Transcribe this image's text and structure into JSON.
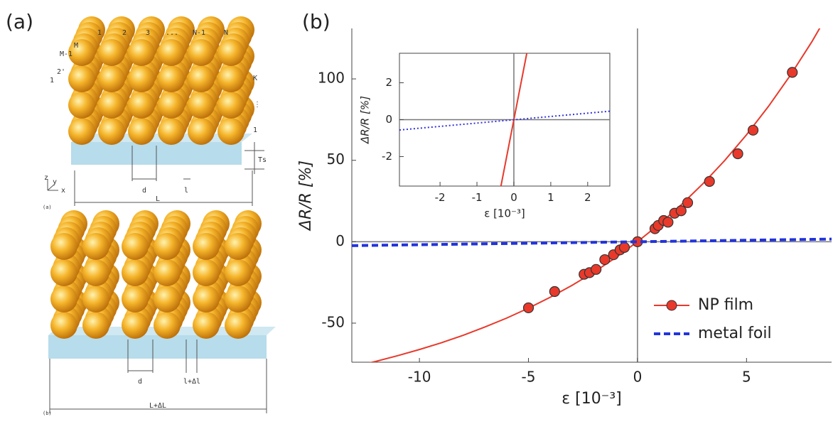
{
  "panel_labels": [
    "(a)",
    "(b)"
  ],
  "illustration": {
    "unstrained": {
      "column_labels": [
        "1",
        "2",
        "3",
        "...",
        "N-1",
        "N"
      ],
      "row_labels": [
        "1",
        "2'",
        "M-1",
        "M"
      ],
      "layer_labels": [
        "K",
        "⋮",
        "1"
      ],
      "thickness_label": "Ts",
      "gap_label": "d",
      "spacing_label": "l",
      "length_label": "L",
      "axes_labels": [
        "z",
        "y",
        "x"
      ],
      "caption": "(a)"
    },
    "strained": {
      "gap_label": "d",
      "spacing_label": "l+Δl",
      "length_label": "L+ΔL",
      "caption": "(b)"
    }
  },
  "chart_data": [
    {
      "type": "line",
      "xlabel": "ε [10⁻³]",
      "ylabel": "ΔR/R [%]",
      "xlim": [
        -13.1,
        8.9
      ],
      "ylim": [
        -74,
        131
      ],
      "xticks": [
        -10,
        -5,
        0,
        5
      ],
      "yticks": [
        -50,
        0,
        50,
        100
      ],
      "zero_lines": true,
      "legend": "lower right",
      "series": [
        {
          "name": "NP film",
          "color": "#e8392b",
          "marker": "circle",
          "x": [
            -5.0,
            -3.8,
            -2.45,
            -2.2,
            -1.9,
            -1.5,
            -1.1,
            -0.8,
            -0.6,
            0,
            0.8,
            0.95,
            1.2,
            1.4,
            1.7,
            2.0,
            2.3,
            3.3,
            4.6,
            5.3,
            7.1
          ],
          "values": [
            -40.6,
            -30.6,
            -20,
            -19,
            -17,
            -11,
            -8,
            -5,
            -3.5,
            0,
            8,
            10,
            13,
            12,
            17.5,
            19,
            24,
            37,
            54,
            68.5,
            104
          ],
          "curve": {
            "x": [
              -13,
              -12,
              -11,
              -10,
              -9,
              -8,
              -7,
              -6,
              -5,
              -4,
              -3,
              -2,
              -1,
              0,
              1,
              2,
              3,
              4,
              5,
              6,
              7,
              8,
              9
            ],
            "values": [
              -76.6,
              -73.5,
              -70.0,
              -66.2,
              -62.1,
              -57.5,
              -52.4,
              -46.9,
              -40.8,
              -34.1,
              -26.8,
              -18.7,
              -9.8,
              0,
              10.8,
              22.6,
              35.6,
              49.9,
              65.7,
              83.0,
              102.0,
              122.9,
              146.0
            ]
          }
        },
        {
          "name": "metal foil",
          "color": "#2233dd",
          "dash": "dashed",
          "x": [
            -13.1,
            8.9
          ],
          "values": [
            -2.4,
            1.6
          ]
        }
      ]
    },
    {
      "type": "line",
      "xlabel": "ε [10⁻³]",
      "ylabel": "ΔR/R [%]",
      "xlim": [
        -3.1,
        2.6
      ],
      "ylim": [
        -3.6,
        3.6
      ],
      "xticks": [
        -2,
        -1,
        0,
        1,
        2
      ],
      "yticks": [
        -2,
        0,
        2
      ],
      "zero_lines": true,
      "series": [
        {
          "color": "#e8392b",
          "x": [
            -0.35,
            0.35
          ],
          "values": [
            -3.6,
            3.6
          ]
        },
        {
          "color": "#3333dd",
          "dash": "dotted",
          "x": [
            -3.1,
            2.6
          ],
          "values": [
            -0.56,
            0.46
          ]
        }
      ]
    }
  ]
}
